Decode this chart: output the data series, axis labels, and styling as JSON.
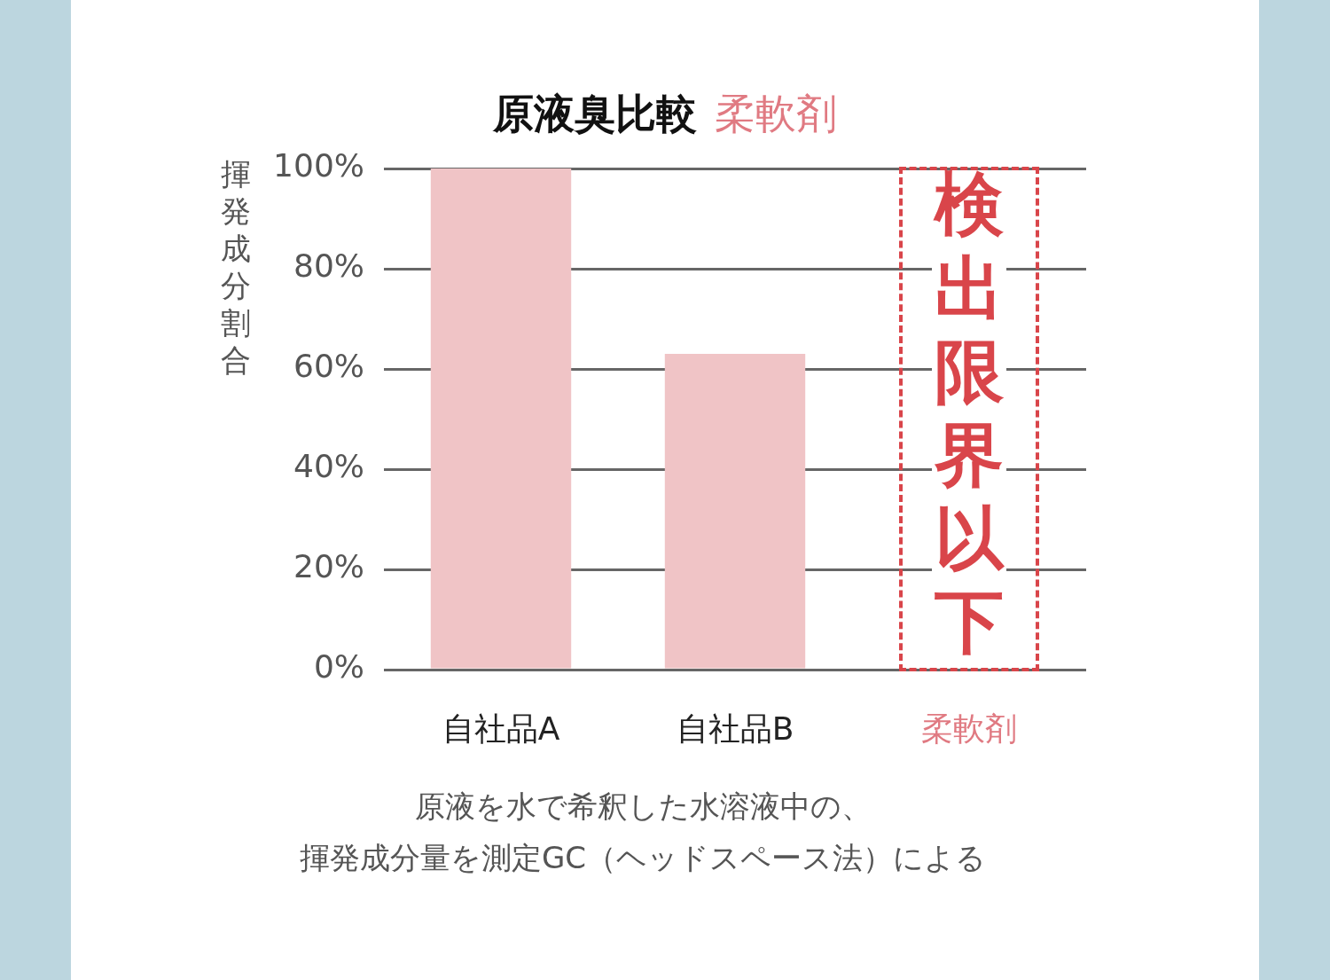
{
  "chart_data": {
    "type": "bar",
    "title": "原液臭比較",
    "subtitle": "柔軟剤",
    "ylabel": "揮発成分割合",
    "categories": [
      "自社品A",
      "自社品B",
      "柔軟剤"
    ],
    "values": [
      100,
      63,
      null
    ],
    "color": "#f0c4c6",
    "ylim": [
      0,
      100
    ],
    "yticks": [
      {
        "value": 0,
        "label": "0%"
      },
      {
        "value": 20,
        "label": "20%"
      },
      {
        "value": 40,
        "label": "40%"
      },
      {
        "value": 60,
        "label": "60%"
      },
      {
        "value": 80,
        "label": "80%"
      },
      {
        "value": 100,
        "label": "100%"
      }
    ],
    "grid": "y",
    "legend": false,
    "annotations": [
      "検出限界以下",
      "原液を水で希釈した水溶液中の、",
      "揮発成分量を測定GC（ヘッドスペース法）による"
    ]
  }
}
